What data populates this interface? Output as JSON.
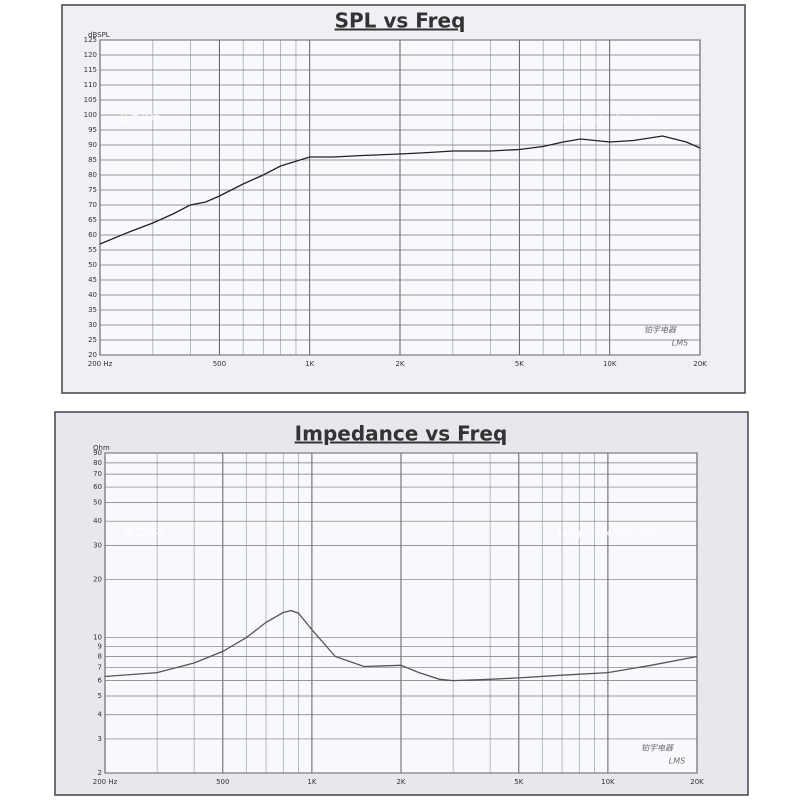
{
  "chart_data": [
    {
      "type": "line",
      "title": "SPL vs Freq",
      "y_label": "dBSPL",
      "xlog": true,
      "ylog": false,
      "grid": true,
      "color": "#222222",
      "xlim": [
        200,
        20000
      ],
      "xticks": [
        {
          "value": 200,
          "label": "200 Hz"
        },
        500,
        {
          "value": 1000,
          "label": "1K"
        },
        {
          "value": 2000,
          "label": "2K"
        },
        {
          "value": 5000,
          "label": "5K"
        },
        {
          "value": 10000,
          "label": "10K"
        },
        {
          "value": 20000,
          "label": "20K"
        }
      ],
      "ylim": [
        20,
        125
      ],
      "yticks": [
        20,
        25,
        30,
        35,
        40,
        45,
        50,
        55,
        60,
        65,
        70,
        75,
        80,
        85,
        90,
        95,
        100,
        105,
        110,
        115,
        120,
        125
      ],
      "x": [
        200,
        250,
        300,
        350,
        400,
        450,
        500,
        600,
        700,
        800,
        1000,
        1200,
        1500,
        2000,
        2500,
        3000,
        4000,
        5000,
        6000,
        7000,
        8000,
        10000,
        12000,
        15000,
        18000,
        20000
      ],
      "values": [
        57,
        61,
        64,
        67,
        70,
        71,
        73,
        77,
        80,
        83,
        86,
        86,
        86.5,
        87,
        87.5,
        88,
        88,
        88.5,
        89.5,
        91,
        92,
        91,
        91.5,
        93,
        91,
        89
      ],
      "annotations": [
        "唐工音响",
        "tangun.taobao.com",
        "铂宇电器",
        "LMS"
      ]
    },
    {
      "type": "line",
      "title": "Impedance vs Freq",
      "y_label": "Ohm",
      "xlog": true,
      "ylog": true,
      "grid": true,
      "color": "#555555",
      "xlim": [
        200,
        20000
      ],
      "xticks": [
        {
          "value": 200,
          "label": "200 Hz"
        },
        500,
        {
          "value": 1000,
          "label": "1K"
        },
        {
          "value": 2000,
          "label": "2K"
        },
        {
          "value": 5000,
          "label": "5K"
        },
        {
          "value": 10000,
          "label": "10K"
        },
        {
          "value": 20000,
          "label": "20K"
        }
      ],
      "ylim": [
        2,
        90
      ],
      "yticks": [
        2,
        3,
        4,
        5,
        6,
        7,
        8,
        9,
        10,
        20,
        30,
        40,
        50,
        60,
        70,
        80,
        90
      ],
      "x": [
        200,
        300,
        400,
        500,
        600,
        700,
        800,
        850,
        900,
        1000,
        1200,
        1500,
        2000,
        2300,
        2700,
        3000,
        4000,
        5000,
        7000,
        10000,
        14000,
        20000
      ],
      "values": [
        6.3,
        6.6,
        7.4,
        8.5,
        10,
        12,
        13.5,
        13.8,
        13.4,
        11,
        8,
        7.1,
        7.2,
        6.6,
        6.1,
        6.0,
        6.1,
        6.2,
        6.4,
        6.6,
        7.2,
        8
      ],
      "annotations": [
        "唐工音响",
        "tangun.taobao.com",
        "铂宇电器",
        "LMS"
      ]
    }
  ]
}
